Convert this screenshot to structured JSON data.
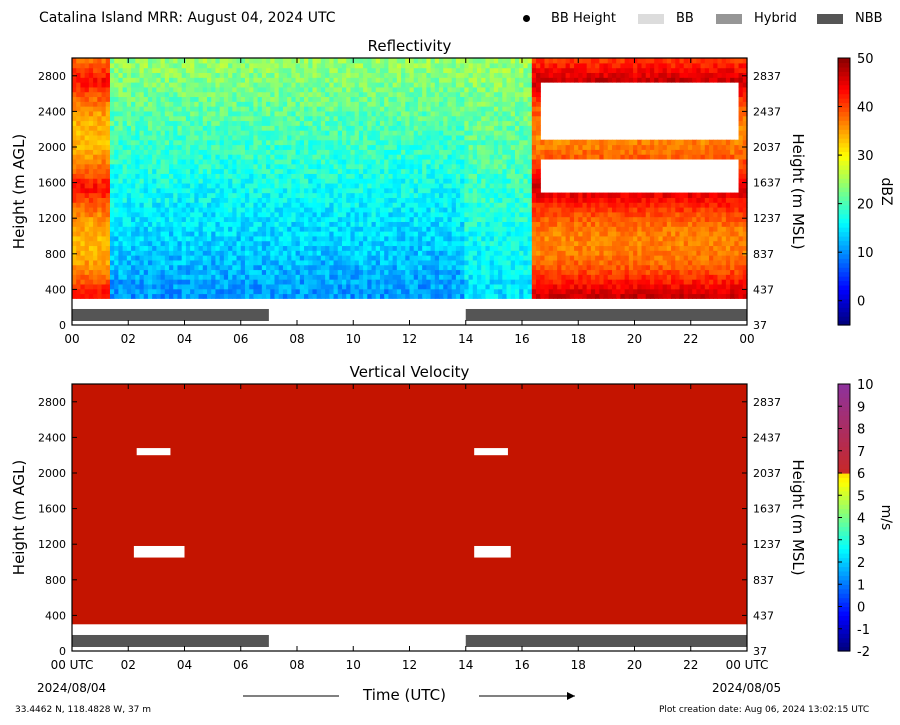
{
  "header": {
    "title": "Catalina Island MRR:  August 04, 2024 UTC",
    "legend": [
      {
        "label": "BB Height",
        "marker": "dot",
        "color": "#000000"
      },
      {
        "label": "BB",
        "marker": "box",
        "color": "#dcdcdc"
      },
      {
        "label": "Hybrid",
        "marker": "box",
        "color": "#969696"
      },
      {
        "label": "NBB",
        "marker": "box",
        "color": "#555555"
      }
    ]
  },
  "footer": {
    "coords": "33.4462 N, 118.4828 W, 37 m",
    "creation": "Plot creation date: Aug 06, 2024 13:02:15 UTC",
    "xlabel": "Time (UTC)",
    "start_date": "2024/08/04",
    "end_date": "2024/08/05"
  },
  "chart_data": [
    {
      "type": "heatmap",
      "title": "Reflectivity",
      "ylabel": "Height (m AGL)",
      "ylabel_right": "Height (m MSL)",
      "colorbar_label": "dBZ",
      "x_ticks": [
        "00",
        "02",
        "04",
        "06",
        "08",
        "10",
        "12",
        "14",
        "16",
        "18",
        "20",
        "22",
        "00"
      ],
      "x_range_hours": [
        0,
        24
      ],
      "y_ticks": [
        0,
        400,
        800,
        1200,
        1600,
        2000,
        2400,
        2800
      ],
      "y_range": [
        0,
        3000
      ],
      "y_ticks_right": [
        37,
        437,
        837,
        1237,
        1637,
        2037,
        2437,
        2837
      ],
      "colorbar_ticks": [
        0,
        10,
        20,
        30,
        40,
        50
      ],
      "colorbar_range": [
        -5,
        50
      ],
      "colormap": "jet",
      "bright_band_type": [
        {
          "start_hour": 0,
          "end_hour": 7,
          "type": "NBB"
        },
        {
          "start_hour": 14,
          "end_hour": 24,
          "type": "NBB"
        }
      ],
      "data_height_range": [
        300,
        3000
      ],
      "blocks": [
        {
          "start_hour": 0,
          "end_hour": 1.3,
          "height_range": [
            300,
            3000
          ],
          "value_range": [
            20,
            45
          ]
        },
        {
          "start_hour": 1.3,
          "end_hour": 14,
          "height_range": [
            300,
            3000
          ],
          "value_range": [
            2,
            25
          ]
        },
        {
          "start_hour": 14,
          "end_hour": 16.3,
          "height_range": [
            300,
            3000
          ],
          "value_range": [
            8,
            25
          ]
        },
        {
          "start_hour": 16.3,
          "end_hour": 24,
          "height_range": [
            300,
            3000
          ],
          "value_range": [
            30,
            48
          ]
        }
      ]
    },
    {
      "type": "heatmap",
      "title": "Vertical Velocity",
      "ylabel": "Height (m AGL)",
      "ylabel_right": "Height (m MSL)",
      "colorbar_label": "m/s",
      "x_ticks": [
        "00 UTC",
        "02",
        "04",
        "06",
        "08",
        "10",
        "12",
        "14",
        "16",
        "18",
        "20",
        "22",
        "00 UTC"
      ],
      "x_range_hours": [
        0,
        24
      ],
      "y_ticks": [
        0,
        400,
        800,
        1200,
        1600,
        2000,
        2400,
        2800
      ],
      "y_range": [
        0,
        3000
      ],
      "y_ticks_right": [
        37,
        437,
        837,
        1237,
        1637,
        2037,
        2437,
        2837
      ],
      "colorbar_ticks": [
        -2,
        -1,
        0,
        1,
        2,
        3,
        4,
        5,
        6,
        7,
        8,
        9,
        10
      ],
      "colorbar_range": [
        -2,
        10
      ],
      "colormap": "jet-magenta",
      "bright_band_type": [
        {
          "start_hour": 0,
          "end_hour": 7,
          "type": "NBB"
        },
        {
          "start_hour": 14,
          "end_hour": 24,
          "type": "NBB"
        }
      ],
      "data_height_range": [
        300,
        3000
      ],
      "fill_value": 6
    }
  ]
}
